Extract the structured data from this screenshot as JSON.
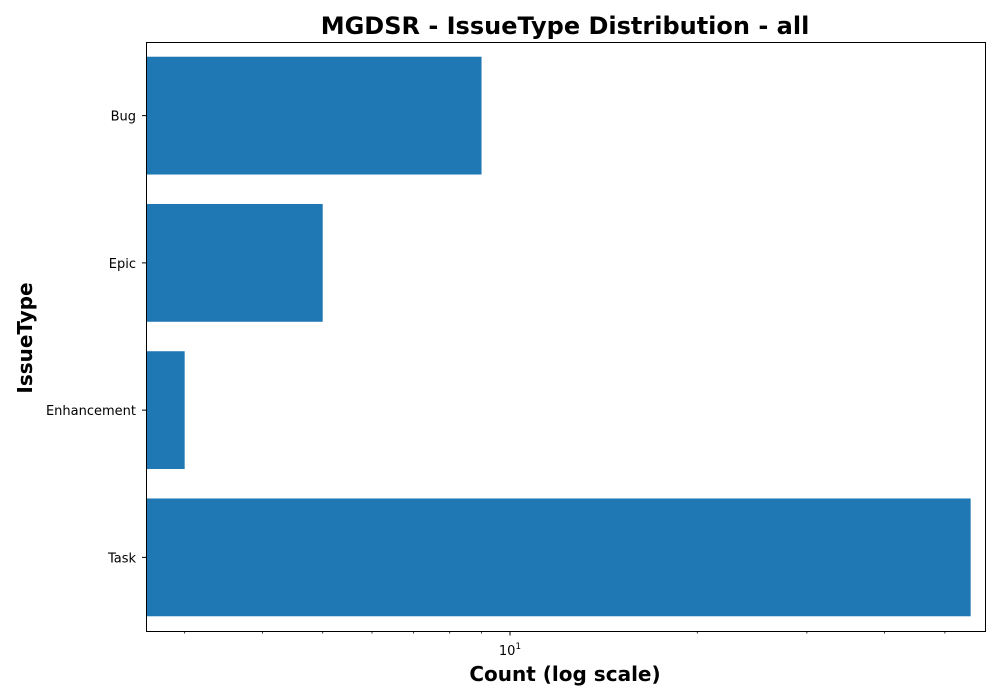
{
  "chart_data": {
    "type": "bar",
    "orientation": "horizontal",
    "title": "MGDSR - IssueType Distribution - all",
    "xlabel": "Count (log scale)",
    "ylabel": "IssueType",
    "x_scale": "log",
    "xlim": [
      2.6,
      58
    ],
    "x_major_ticks": [
      {
        "value": 10,
        "base": "10",
        "exp": "1"
      }
    ],
    "x_minor_ticks": [
      3,
      4,
      5,
      6,
      7,
      8,
      9,
      20,
      30,
      40,
      50
    ],
    "categories": [
      "Bug",
      "Epic",
      "Enhancement",
      "Task"
    ],
    "values": [
      9,
      5,
      3,
      55
    ],
    "bar_color": "#1f77b4",
    "grid": false,
    "legend": "none"
  }
}
